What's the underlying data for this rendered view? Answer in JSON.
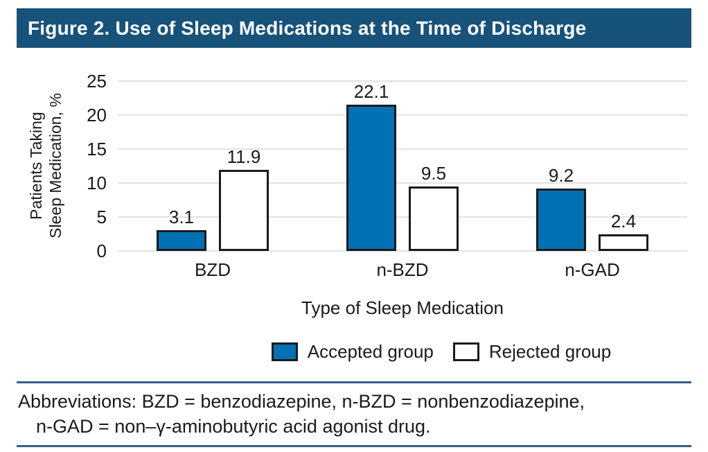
{
  "figure": {
    "title": "Figure 2. Use of Sleep Medications at the Time of Discharge"
  },
  "chart_data": {
    "type": "bar",
    "title": "Figure 2. Use of Sleep Medications at the Time of Discharge",
    "categories": [
      "BZD",
      "n-BZD",
      "n-GAD"
    ],
    "series": [
      {
        "name": "Accepted group",
        "color": "#0071b5",
        "values": [
          3.1,
          22.1,
          9.2
        ]
      },
      {
        "name": "Rejected group",
        "color": "#ffffff",
        "values": [
          11.9,
          9.5,
          2.4
        ]
      }
    ],
    "xlabel": "Type of Sleep Medication",
    "ylabel": "Patients Taking Sleep Medication, %",
    "ylabel_lines": [
      "Patients Taking",
      "Sleep Medication, %"
    ],
    "ylim": [
      0,
      25
    ],
    "yticks": [
      0,
      5,
      10,
      15,
      20,
      25
    ],
    "grid": "horizontal-gridlines",
    "legend_position": "bottom-center",
    "bar_value_labels_shown": true
  },
  "footnote": {
    "line1": "Abbreviations: BZD = benzodiazepine, n-BZD = nonbenzodiazepine,",
    "line2": "n-GAD = non–γ-aminobutyric acid agonist drug."
  },
  "colors": {
    "title_bar_background": "#17527a",
    "title_text": "#ffffff",
    "accepted_bar_fill": "#0071b5",
    "rejected_bar_fill": "#ffffff",
    "bar_border": "#1a1a1a",
    "gridline": "#e2e2e2",
    "rule": "#2e618a",
    "text": "#1a1a1a"
  }
}
